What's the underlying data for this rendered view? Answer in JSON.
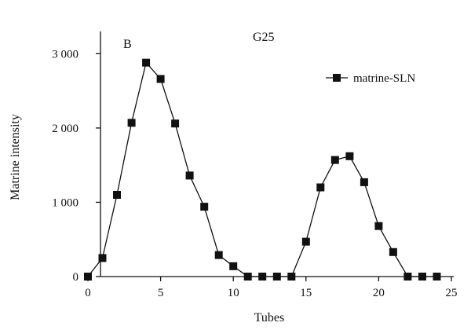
{
  "chart_data": {
    "type": "line",
    "panel_label": "B",
    "title": "G25",
    "xlabel": "Tubes",
    "ylabel": "Matrine intensity",
    "xlim": [
      0,
      25
    ],
    "ylim": [
      0,
      3300
    ],
    "x_ticks": [
      0,
      5,
      10,
      15,
      20,
      25
    ],
    "x_tick_labels": [
      "0",
      "5",
      "10",
      "15",
      "20",
      "25"
    ],
    "y_ticks": [
      0,
      1000,
      2000,
      3000
    ],
    "y_tick_labels": [
      "0",
      "1 000",
      "2 000",
      "3 000"
    ],
    "grid": false,
    "legend_position": "top-right",
    "series": [
      {
        "name": "matrine-SLN",
        "marker": "square",
        "color": "#111111",
        "x": [
          0,
          1,
          2,
          3,
          4,
          5,
          6,
          7,
          8,
          9,
          10,
          11,
          12,
          13,
          14,
          15,
          16,
          17,
          18,
          19,
          20,
          21,
          22,
          23,
          24
        ],
        "values": [
          0,
          250,
          1100,
          2070,
          2880,
          2660,
          2060,
          1360,
          940,
          290,
          140,
          0,
          0,
          0,
          0,
          470,
          1200,
          1570,
          1620,
          1270,
          680,
          330,
          0,
          0,
          0
        ]
      }
    ]
  }
}
